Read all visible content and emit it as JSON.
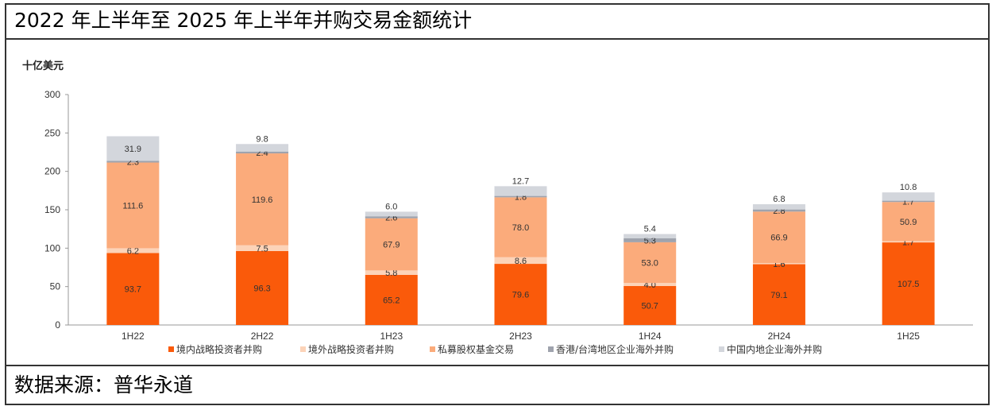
{
  "title": "2022 年上半年至 2025 年上半年并购交易金额统计",
  "source": "数据来源：普华永道",
  "chart_data": {
    "type": "bar",
    "stacked": true,
    "ylabel": "十亿美元",
    "ylim": [
      0,
      300
    ],
    "yticks": [
      0,
      50,
      100,
      150,
      200,
      250,
      300
    ],
    "grid": false,
    "legend_position": "bottom",
    "categories": [
      "1H22",
      "2H22",
      "1H23",
      "2H23",
      "1H24",
      "2H24",
      "1H25"
    ],
    "series": [
      {
        "name": "境内战略投资者并购",
        "color": "#fa5a0a",
        "values": [
          93.7,
          96.3,
          65.2,
          79.6,
          50.7,
          79.1,
          107.5
        ]
      },
      {
        "name": "境外战略投资者并购",
        "color": "#fcd3b8",
        "values": [
          6.2,
          7.5,
          5.8,
          8.6,
          4.0,
          1.6,
          1.7
        ]
      },
      {
        "name": "私募股权基金交易",
        "color": "#fbab7b",
        "values": [
          111.6,
          119.6,
          67.9,
          78.0,
          53.0,
          66.9,
          50.9
        ]
      },
      {
        "name": "香港/台湾地区企业海外并购",
        "color": "#9fa3ad",
        "values": [
          2.3,
          2.4,
          2.6,
          1.8,
          5.3,
          2.8,
          1.7
        ]
      },
      {
        "name": "中国内地企业海外并购",
        "color": "#d3d6dc",
        "values": [
          31.9,
          9.8,
          6.0,
          12.7,
          5.4,
          6.8,
          10.8
        ]
      }
    ]
  }
}
